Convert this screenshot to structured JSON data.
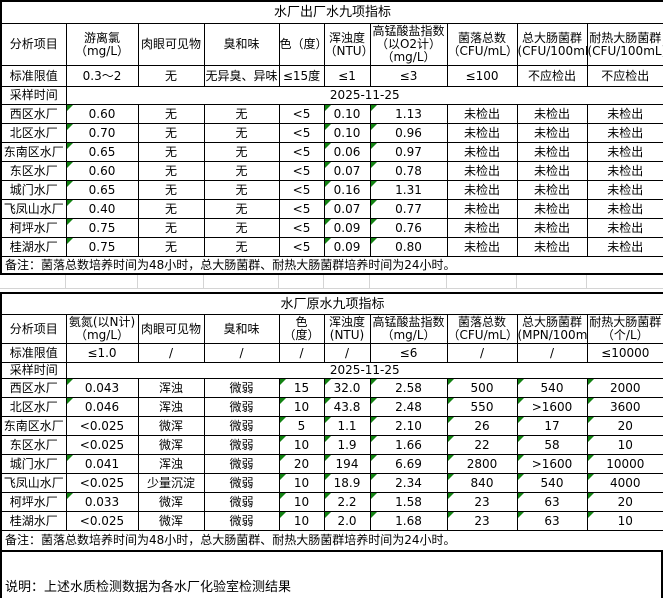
{
  "sheet": {
    "tables": [
      {
        "id": "finished-water",
        "title": "水厂出厂水九项指标",
        "corner_label": "分析项目",
        "columns": [
          [
            "游离氯",
            "（mg/L）"
          ],
          [
            "肉眼可见物"
          ],
          [
            "臭和味"
          ],
          [
            "色（度）"
          ],
          [
            "浑浊度",
            "（NTU）"
          ],
          [
            "高锰酸盐指数",
            "（以O2计）",
            "（mg/L）"
          ],
          [
            "菌落总数",
            "（CFU/mL）"
          ],
          [
            "总大肠菌群",
            "(CFU/100mL)"
          ],
          [
            "耐热大肠菌群",
            "(CFU/100mL)"
          ]
        ],
        "limit_label": "标准限值",
        "limits": [
          "0.3～2",
          "无",
          "无异臭、异味",
          "≤15度",
          "≤1",
          "≤3",
          "≤100",
          "不应检出",
          "不应检出"
        ],
        "sample_label": "采样时间",
        "sample_date": "2025-11-25",
        "rows": [
          {
            "name": "西区水厂",
            "values": [
              "0.60",
              "无",
              "无",
              "<5",
              "0.10",
              "1.13",
              "未检出",
              "未检出",
              "未检出"
            ],
            "flags": [
              1,
              0,
              0,
              0,
              1,
              1,
              0,
              0,
              0
            ]
          },
          {
            "name": "北区水厂",
            "values": [
              "0.70",
              "无",
              "无",
              "<5",
              "0.10",
              "0.96",
              "未检出",
              "未检出",
              "未检出"
            ],
            "flags": [
              1,
              0,
              0,
              0,
              1,
              1,
              0,
              0,
              0
            ]
          },
          {
            "name": "东南区水厂",
            "values": [
              "0.65",
              "无",
              "无",
              "<5",
              "0.06",
              "0.97",
              "未检出",
              "未检出",
              "未检出"
            ],
            "flags": [
              1,
              0,
              0,
              0,
              1,
              1,
              0,
              0,
              0
            ]
          },
          {
            "name": "东区水厂",
            "values": [
              "0.60",
              "无",
              "无",
              "<5",
              "0.07",
              "0.78",
              "未检出",
              "未检出",
              "未检出"
            ],
            "flags": [
              1,
              0,
              0,
              0,
              1,
              1,
              0,
              0,
              0
            ]
          },
          {
            "name": "城门水厂",
            "values": [
              "0.65",
              "无",
              "无",
              "<5",
              "0.16",
              "1.31",
              "未检出",
              "未检出",
              "未检出"
            ],
            "flags": [
              1,
              0,
              0,
              0,
              1,
              1,
              0,
              0,
              0
            ]
          },
          {
            "name": "飞凤山水厂",
            "values": [
              "0.40",
              "无",
              "无",
              "<5",
              "0.07",
              "0.77",
              "未检出",
              "未检出",
              "未检出"
            ],
            "flags": [
              1,
              0,
              0,
              0,
              1,
              1,
              0,
              0,
              0
            ]
          },
          {
            "name": "柯坪水厂",
            "values": [
              "0.75",
              "无",
              "无",
              "<5",
              "0.09",
              "0.76",
              "未检出",
              "未检出",
              "未检出"
            ],
            "flags": [
              1,
              0,
              0,
              0,
              1,
              1,
              0,
              0,
              0
            ]
          },
          {
            "name": "桂湖水厂",
            "values": [
              "0.75",
              "无",
              "无",
              "<5",
              "0.09",
              "0.80",
              "未检出",
              "未检出",
              "未检出"
            ],
            "flags": [
              1,
              0,
              0,
              0,
              1,
              1,
              0,
              0,
              0
            ]
          }
        ],
        "note": "备注：菌落总数培养时间为48小时，总大肠菌群、耐热大肠菌群培养时间为24小时。"
      },
      {
        "id": "raw-water",
        "title": "水厂原水九项指标",
        "corner_label": "分析项目",
        "columns": [
          [
            "氨氮(以N计)",
            "（mg/L）"
          ],
          [
            "肉眼可见物"
          ],
          [
            "臭和味"
          ],
          [
            "色",
            "（度）"
          ],
          [
            "浑浊度",
            "(NTU)"
          ],
          [
            "高锰酸盐指数",
            "（mg/L）"
          ],
          [
            "菌落总数",
            "（CFU/mL）"
          ],
          [
            "总大肠菌群",
            "(MPN/100mL)"
          ],
          [
            "耐热大肠菌群",
            "（个/L）"
          ]
        ],
        "limit_label": "标准限值",
        "limits": [
          "≤1.0",
          "/",
          "/",
          "/",
          "/",
          "≤6",
          "/",
          "/",
          "≤10000"
        ],
        "sample_label": "采样时间",
        "sample_date": "2025-11-25",
        "rows": [
          {
            "name": "西区水厂",
            "values": [
              "0.043",
              "浑浊",
              "微弱",
              "15",
              "32.0",
              "2.58",
              "500",
              "540",
              "2000"
            ],
            "flags": [
              1,
              0,
              0,
              1,
              1,
              1,
              1,
              1,
              1
            ]
          },
          {
            "name": "北区水厂",
            "values": [
              "0.046",
              "浑浊",
              "微弱",
              "10",
              "43.8",
              "2.48",
              "550",
              ">1600",
              "3600"
            ],
            "flags": [
              1,
              0,
              0,
              1,
              1,
              1,
              1,
              1,
              1
            ]
          },
          {
            "name": "东南区水厂",
            "values": [
              "<0.025",
              "微浑",
              "微弱",
              "5",
              "1.1",
              "2.10",
              "26",
              "17",
              "20"
            ],
            "flags": [
              0,
              0,
              0,
              1,
              1,
              1,
              1,
              1,
              1
            ]
          },
          {
            "name": "东区水厂",
            "values": [
              "<0.025",
              "微浑",
              "微弱",
              "10",
              "1.9",
              "1.66",
              "22",
              "58",
              "10"
            ],
            "flags": [
              0,
              0,
              0,
              1,
              1,
              1,
              1,
              1,
              1
            ]
          },
          {
            "name": "城门水厂",
            "values": [
              "0.041",
              "浑浊",
              "微弱",
              "20",
              "194",
              "6.69",
              "2800",
              ">1600",
              "10000"
            ],
            "flags": [
              1,
              0,
              0,
              1,
              1,
              1,
              1,
              1,
              1
            ]
          },
          {
            "name": "飞凤山水厂",
            "values": [
              "<0.025",
              "少量沉淀",
              "微弱",
              "10",
              "18.9",
              "2.34",
              "840",
              "540",
              "4000"
            ],
            "flags": [
              0,
              0,
              0,
              1,
              1,
              1,
              1,
              1,
              1
            ]
          },
          {
            "name": "柯坪水厂",
            "values": [
              "0.033",
              "微浑",
              "微弱",
              "10",
              "2.2",
              "1.58",
              "23",
              "63",
              "20"
            ],
            "flags": [
              1,
              0,
              0,
              1,
              1,
              1,
              1,
              1,
              1
            ]
          },
          {
            "name": "桂湖水厂",
            "values": [
              "<0.025",
              "微浑",
              "微弱",
              "10",
              "2.0",
              "1.68",
              "23",
              "63",
              "10"
            ],
            "flags": [
              0,
              0,
              0,
              1,
              1,
              1,
              1,
              1,
              1
            ]
          }
        ],
        "note": "备注：菌落总数培养时间为48小时，总大肠菌群、耐热大肠菌群培养时间为24小时。"
      }
    ],
    "footer_note": "说明：上述水质检测数据为各水厂化验室检测结果",
    "icons": {
      "cell_flag": "number-stored-as-text-indicator"
    },
    "colors": {
      "border": "#000000",
      "triangle": "#128212",
      "gridline": "#d4d4d4",
      "background": "#ffffff"
    }
  }
}
